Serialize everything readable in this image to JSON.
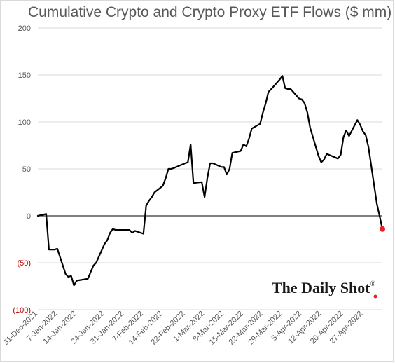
{
  "chart_data": {
    "type": "line",
    "title": "Cumulative Crypto and Crypto Proxy ETF Flows ($ mm)",
    "xlabel": "",
    "ylabel": "",
    "ylim": [
      -100,
      200
    ],
    "yticks": [
      200,
      150,
      100,
      50,
      0,
      -50,
      -100
    ],
    "ytick_labels": [
      "200",
      "150",
      "100",
      "50",
      "0",
      "(50)",
      "(100)"
    ],
    "x_start": "2021-12-31",
    "x_end": "2022-05-04",
    "xticks": [
      "2021-12-31",
      "2022-01-07",
      "2022-01-14",
      "2022-01-24",
      "2022-01-31",
      "2022-02-07",
      "2022-02-14",
      "2022-02-22",
      "2022-03-01",
      "2022-03-08",
      "2022-03-15",
      "2022-03-22",
      "2022-03-29",
      "2022-04-05",
      "2022-04-12",
      "2022-04-20",
      "2022-04-27"
    ],
    "xtick_labels": [
      "31-Dec-2021",
      "7-Jan-2022",
      "14-Jan-2022",
      "24-Jan-2022",
      "31-Jan-2022",
      "7-Feb-2022",
      "14-Feb-2022",
      "22-Feb-2022",
      "1-Mar-2022",
      "8-Mar-2022",
      "15-Mar-2022",
      "22-Mar-2022",
      "29-Mar-2022",
      "5-Apr-2022",
      "12-Apr-2022",
      "20-Apr-2022",
      "27-Apr-2022"
    ],
    "grid": "horizontal",
    "line_color": "#000000",
    "marker_color": "#e8202a",
    "series": [
      {
        "x": [
          "2021-12-31",
          "2022-01-03",
          "2022-01-04",
          "2022-01-05",
          "2022-01-06",
          "2022-01-07",
          "2022-01-10",
          "2022-01-11",
          "2022-01-12",
          "2022-01-13",
          "2022-01-14",
          "2022-01-18",
          "2022-01-19",
          "2022-01-20",
          "2022-01-21",
          "2022-01-24",
          "2022-01-25",
          "2022-01-26",
          "2022-01-27",
          "2022-01-28",
          "2022-01-31",
          "2022-02-01",
          "2022-02-02",
          "2022-02-03",
          "2022-02-04",
          "2022-02-07",
          "2022-02-08",
          "2022-02-09",
          "2022-02-10",
          "2022-02-11",
          "2022-02-14",
          "2022-02-15",
          "2022-02-16",
          "2022-02-17",
          "2022-02-18",
          "2022-02-22",
          "2022-02-23",
          "2022-02-24",
          "2022-02-25",
          "2022-02-28",
          "2022-03-01",
          "2022-03-02",
          "2022-03-03",
          "2022-03-04",
          "2022-03-07",
          "2022-03-08",
          "2022-03-09",
          "2022-03-10",
          "2022-03-11",
          "2022-03-14",
          "2022-03-15",
          "2022-03-16",
          "2022-03-17",
          "2022-03-18",
          "2022-03-21",
          "2022-03-22",
          "2022-03-23",
          "2022-03-24",
          "2022-03-25",
          "2022-03-28",
          "2022-03-29",
          "2022-03-30",
          "2022-03-31",
          "2022-04-01",
          "2022-04-04",
          "2022-04-05",
          "2022-04-06",
          "2022-04-07",
          "2022-04-08",
          "2022-04-11",
          "2022-04-12",
          "2022-04-13",
          "2022-04-14",
          "2022-04-18",
          "2022-04-19",
          "2022-04-20",
          "2022-04-21",
          "2022-04-22",
          "2022-04-25",
          "2022-04-26",
          "2022-04-27",
          "2022-04-28",
          "2022-04-29",
          "2022-05-02",
          "2022-05-03",
          "2022-05-04"
        ],
        "values": [
          0,
          2,
          -36,
          -36,
          -36,
          -35,
          -62,
          -65,
          -64,
          -74,
          -69,
          -67,
          -60,
          -53,
          -50,
          -30,
          -26,
          -18,
          -14,
          -15,
          -15,
          -15,
          -15,
          -18,
          -16,
          -19,
          11,
          16,
          20,
          25,
          32,
          40,
          50,
          50,
          51,
          56,
          57,
          76,
          35,
          36,
          20,
          40,
          56,
          56,
          52,
          52,
          44,
          50,
          67,
          69,
          76,
          74,
          82,
          93,
          98,
          110,
          120,
          132,
          135,
          145,
          149,
          136,
          135,
          135,
          125,
          124,
          120,
          110,
          94,
          64,
          57,
          60,
          66,
          61,
          65,
          84,
          91,
          85,
          102,
          97,
          90,
          86,
          73,
          13,
          0,
          -14
        ]
      }
    ],
    "end_marker": {
      "x": "2022-05-04",
      "y": -14
    }
  },
  "logo": {
    "text": "The Daily Shot",
    "mark": "®"
  }
}
